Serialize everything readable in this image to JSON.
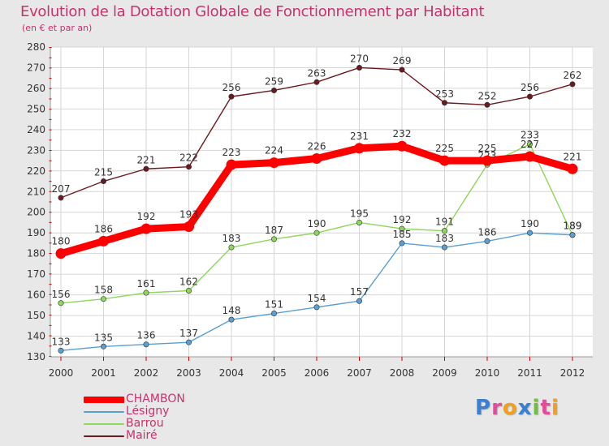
{
  "chart_data": {
    "type": "line",
    "title": "Evolution de la Dotation Globale de Fonctionnement par Habitant",
    "subtitle": "(en € et par an)",
    "categories": [
      "2000",
      "2001",
      "2002",
      "2003",
      "2004",
      "2005",
      "2006",
      "2007",
      "2008",
      "2009",
      "2010",
      "2011",
      "2012"
    ],
    "ylim": [
      130,
      280
    ],
    "yticks": [
      130,
      140,
      150,
      160,
      170,
      180,
      190,
      200,
      210,
      220,
      230,
      240,
      250,
      260,
      270,
      280
    ],
    "grid": true,
    "series": [
      {
        "name": "Mairé",
        "color": "#6b1a1f",
        "values": [
          207,
          215,
          221,
          222,
          256,
          259,
          263,
          270,
          269,
          253,
          252,
          256,
          262
        ]
      },
      {
        "name": "Barrou",
        "color": "#8ed65c",
        "values": [
          156,
          158,
          161,
          162,
          183,
          187,
          190,
          195,
          192,
          191,
          223,
          233,
          189
        ]
      },
      {
        "name": "Lésigny",
        "color": "#5a9fd4",
        "values": [
          133,
          135,
          136,
          137,
          148,
          151,
          154,
          157,
          185,
          183,
          186,
          190,
          189
        ]
      },
      {
        "name": "CHAMBON",
        "color": "#ff0000",
        "values": [
          180,
          186,
          192,
          193,
          223,
          224,
          226,
          231,
          232,
          225,
          225,
          227,
          221
        ]
      }
    ],
    "legend": [
      "CHAMBON",
      "Lésigny",
      "Barrou",
      "Mairé"
    ],
    "legend_position": "bottom-left"
  },
  "logo": {
    "letters": [
      {
        "ch": "P",
        "color": "#3a7fd0"
      },
      {
        "ch": "r",
        "color": "#e64a9a"
      },
      {
        "ch": "o",
        "color": "#f0a020"
      },
      {
        "ch": "x",
        "color": "#3a7fd0"
      },
      {
        "ch": "i",
        "color": "#70c040"
      },
      {
        "ch": "t",
        "color": "#e64a9a"
      },
      {
        "ch": "i",
        "color": "#f0a020"
      }
    ]
  }
}
